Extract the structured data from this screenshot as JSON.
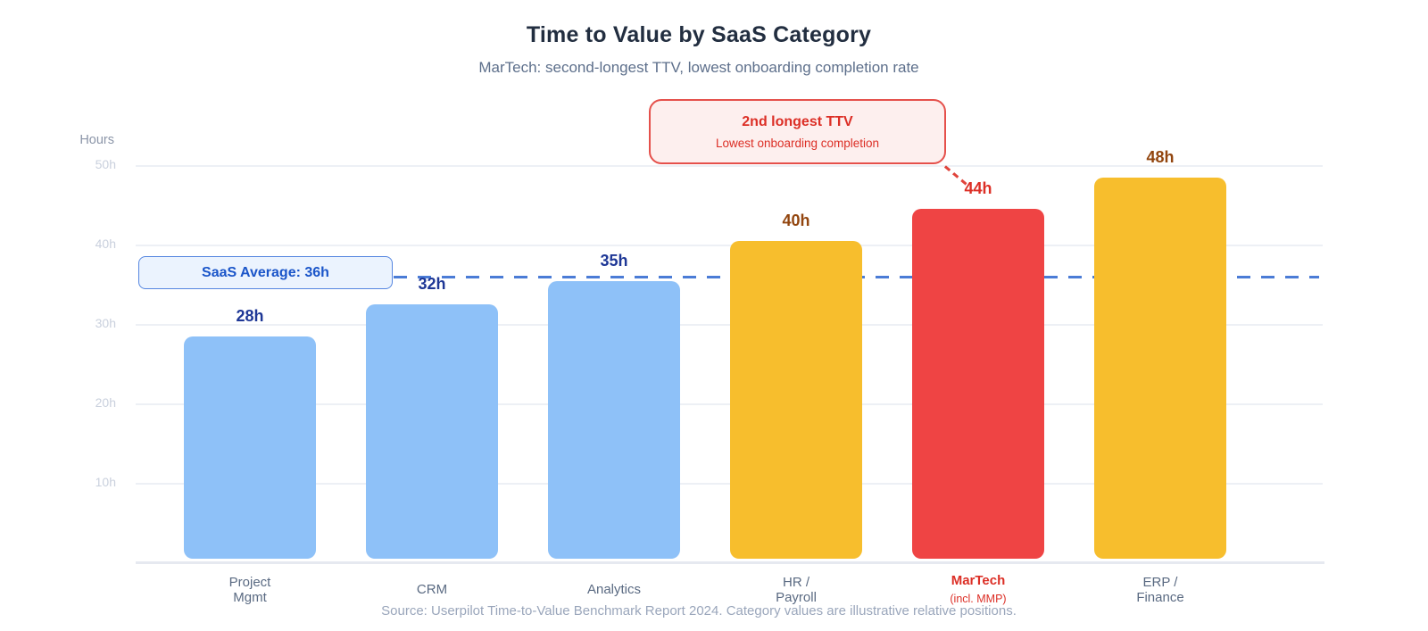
{
  "chart_data": {
    "type": "bar",
    "title": "Time to Value by SaaS Category",
    "subtitle": "MarTech: second-longest TTV, lowest onboarding completion rate",
    "ylabel": "Hours",
    "ylim": [
      0,
      50
    ],
    "grid": true,
    "ytick_labels": [
      {
        "value": 50,
        "label": "50h"
      },
      {
        "value": 40,
        "label": "40h"
      },
      {
        "value": 30,
        "label": "30h"
      },
      {
        "value": 20,
        "label": "20h"
      },
      {
        "value": 10,
        "label": "10h"
      }
    ],
    "categories": [
      "Project Mgmt",
      "CRM",
      "Analytics",
      "HR / Payroll",
      "MarTech",
      "ERP / Finance"
    ],
    "values": [
      28,
      32,
      35,
      40,
      44,
      48
    ],
    "bars": [
      {
        "name": "project-mgmt",
        "label_lines": [
          "Project",
          "Mgmt"
        ],
        "note": "",
        "value": 28,
        "value_label": "28h",
        "bar_color": "#8ec1f8",
        "value_color": "#1e3796",
        "label_color": "#5a6a82",
        "highlight": false
      },
      {
        "name": "crm",
        "label_lines": [
          "CRM"
        ],
        "note": "",
        "value": 32,
        "value_label": "32h",
        "bar_color": "#8ec1f8",
        "value_color": "#1e3796",
        "label_color": "#5a6a82",
        "highlight": false
      },
      {
        "name": "analytics",
        "label_lines": [
          "Analytics"
        ],
        "note": "",
        "value": 35,
        "value_label": "35h",
        "bar_color": "#8ec1f8",
        "value_color": "#1e3796",
        "label_color": "#5a6a82",
        "highlight": false
      },
      {
        "name": "hr-payroll",
        "label_lines": [
          "HR /",
          "Payroll"
        ],
        "note": "",
        "value": 40,
        "value_label": "40h",
        "bar_color": "#f7be2d",
        "value_color": "#92450e",
        "label_color": "#5a6a82",
        "highlight": false
      },
      {
        "name": "martech",
        "label_lines": [
          "MarTech"
        ],
        "note": "(incl. MMP)",
        "value": 44,
        "value_label": "44h",
        "bar_color": "#ef4444",
        "value_color": "#dc2f26",
        "label_color": "#dc2f26",
        "highlight": true
      },
      {
        "name": "erp-finance",
        "label_lines": [
          "ERP /",
          "Finance"
        ],
        "note": "",
        "value": 48,
        "value_label": "48h",
        "bar_color": "#f7be2d",
        "value_color": "#92450e",
        "label_color": "#5a6a82",
        "highlight": false
      }
    ],
    "average_line": {
      "value": 36,
      "label": "SaaS Average: 36h",
      "color": "#4b7cd6"
    },
    "annotation": {
      "title": "2nd longest TTV",
      "subtitle": "Lowest onboarding completion",
      "color": "#dc2f26",
      "target": "MarTech"
    },
    "source": "Source: Userpilot Time-to-Value Benchmark Report 2024. Category values are illustrative relative positions."
  }
}
